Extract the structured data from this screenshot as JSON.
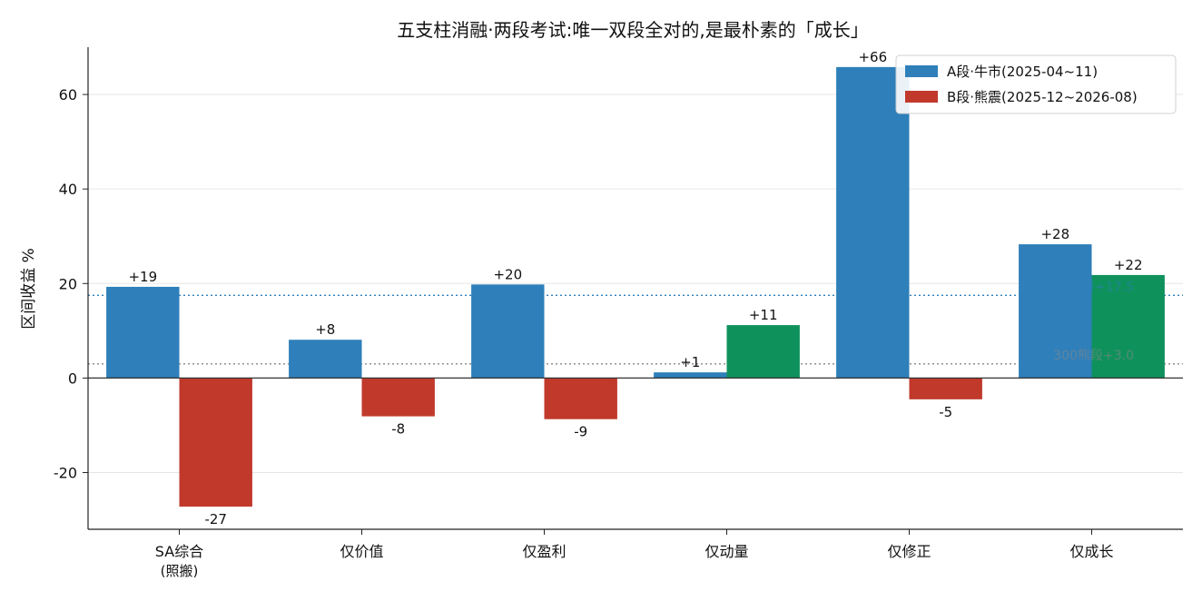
{
  "chart_data": {
    "type": "bar",
    "title": "五支柱消融·两段考试:唯一双段全对的,是最朴素的「成长」",
    "xlabel": "",
    "ylabel": "区间收益 %",
    "ylim": [
      -32,
      70
    ],
    "yticks": [
      -20,
      0,
      20,
      40,
      60
    ],
    "grid": "horizontal",
    "legend_position": "top-right",
    "categories": [
      {
        "label": "SA综合",
        "sub": "(照搬)"
      },
      {
        "label": "仅价值",
        "sub": ""
      },
      {
        "label": "仅盈利",
        "sub": ""
      },
      {
        "label": "仅动量",
        "sub": ""
      },
      {
        "label": "仅修正",
        "sub": ""
      },
      {
        "label": "仅成长",
        "sub": ""
      }
    ],
    "series": [
      {
        "name": "A段·牛市(2025-04~11)",
        "color": "#2e7fba",
        "values": [
          19.3,
          8.1,
          19.8,
          1.2,
          65.8,
          28.3
        ],
        "labels": [
          "+19",
          "+8",
          "+20",
          "+1",
          "+66",
          "+28"
        ]
      },
      {
        "name": "B段·熊震(2025-12~2026-08)",
        "color": "#c0392b",
        "positive_color": "#0f915c",
        "values": [
          -27.2,
          -8.1,
          -8.7,
          11.2,
          -4.5,
          21.8
        ],
        "labels": [
          "-27",
          "-8",
          "-9",
          "+11",
          "-5",
          "+22"
        ]
      }
    ],
    "reference_lines": [
      {
        "value": 17.5,
        "label": "牛段+17.5",
        "color": "#2e7fba"
      },
      {
        "value": 3.0,
        "label": "300熊段+3.0",
        "color": "#888888"
      }
    ]
  }
}
